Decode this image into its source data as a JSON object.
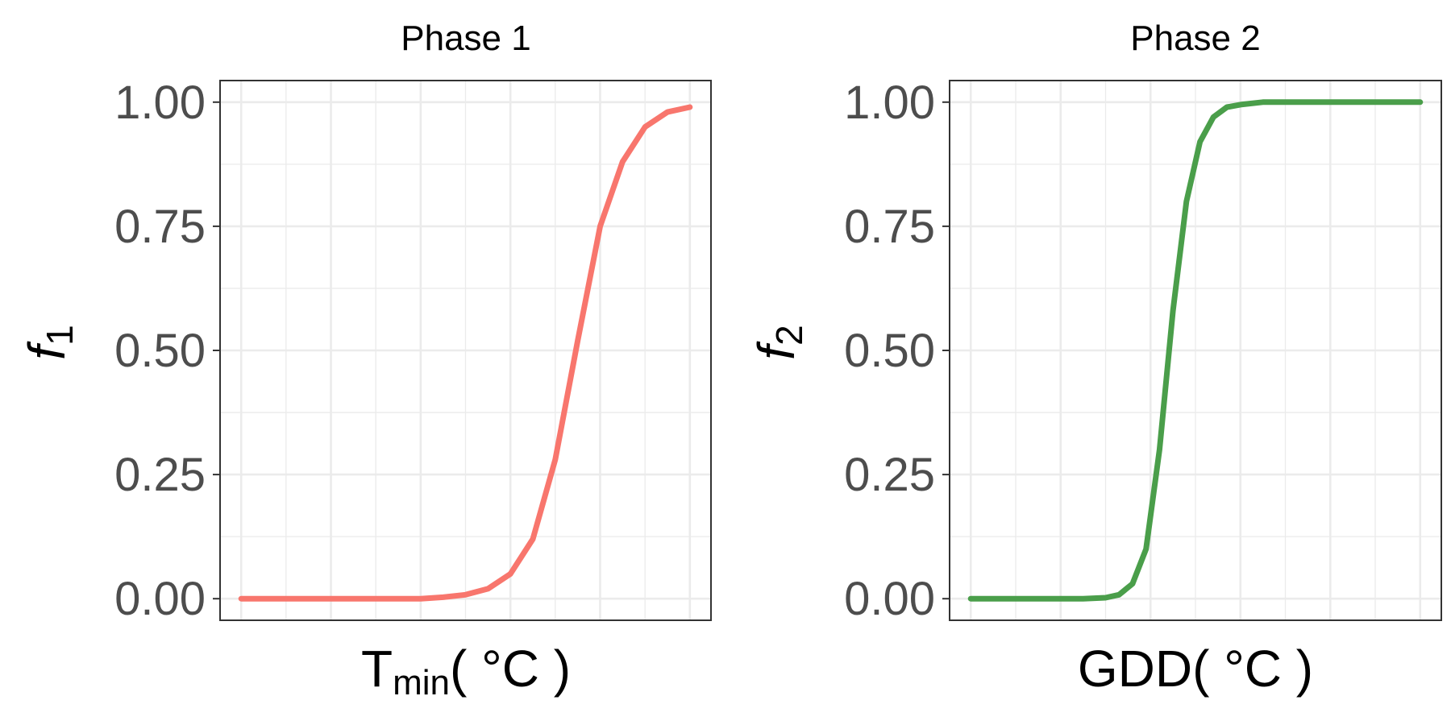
{
  "chart_data": [
    {
      "type": "line",
      "title": "Phase 1",
      "xlabel": "T",
      "xlabel_sub": "min",
      "xlabel_unit": "( °C )",
      "ylabel": "f",
      "ylabel_sub": "1",
      "ylim": [
        0,
        1
      ],
      "yticks": [
        "0.00",
        "0.25",
        "0.50",
        "0.75",
        "1.00"
      ],
      "xticks_shown": false,
      "grid": true,
      "color": "#F8766D",
      "series": [
        {
          "x": [
            0,
            0.05,
            0.1,
            0.15,
            0.2,
            0.25,
            0.3,
            0.35,
            0.4,
            0.45,
            0.5,
            0.55,
            0.6,
            0.65,
            0.7,
            0.75,
            0.8,
            0.85,
            0.9,
            0.95,
            1.0
          ],
          "values": [
            0.0,
            0.0,
            0.0,
            0.0,
            0.0,
            0.0,
            0.0,
            0.0,
            0.0,
            0.003,
            0.008,
            0.02,
            0.05,
            0.12,
            0.28,
            0.52,
            0.75,
            0.88,
            0.95,
            0.98,
            0.99
          ]
        }
      ]
    },
    {
      "type": "line",
      "title": "Phase 2",
      "xlabel": "GDD( °C )",
      "ylabel": "f",
      "ylabel_sub": "2",
      "ylim": [
        0,
        1
      ],
      "yticks": [
        "0.00",
        "0.25",
        "0.50",
        "0.75",
        "1.00"
      ],
      "xticks_shown": false,
      "grid": true,
      "color": "#4A9E4A",
      "series": [
        {
          "x": [
            0,
            0.05,
            0.1,
            0.15,
            0.2,
            0.25,
            0.3,
            0.33,
            0.36,
            0.39,
            0.42,
            0.45,
            0.48,
            0.51,
            0.54,
            0.57,
            0.6,
            0.65,
            0.7,
            0.8,
            0.9,
            1.0
          ],
          "values": [
            0.0,
            0.0,
            0.0,
            0.0,
            0.0,
            0.0,
            0.002,
            0.008,
            0.03,
            0.1,
            0.3,
            0.58,
            0.8,
            0.92,
            0.97,
            0.99,
            0.995,
            1.0,
            1.0,
            1.0,
            1.0,
            1.0
          ]
        }
      ]
    }
  ]
}
